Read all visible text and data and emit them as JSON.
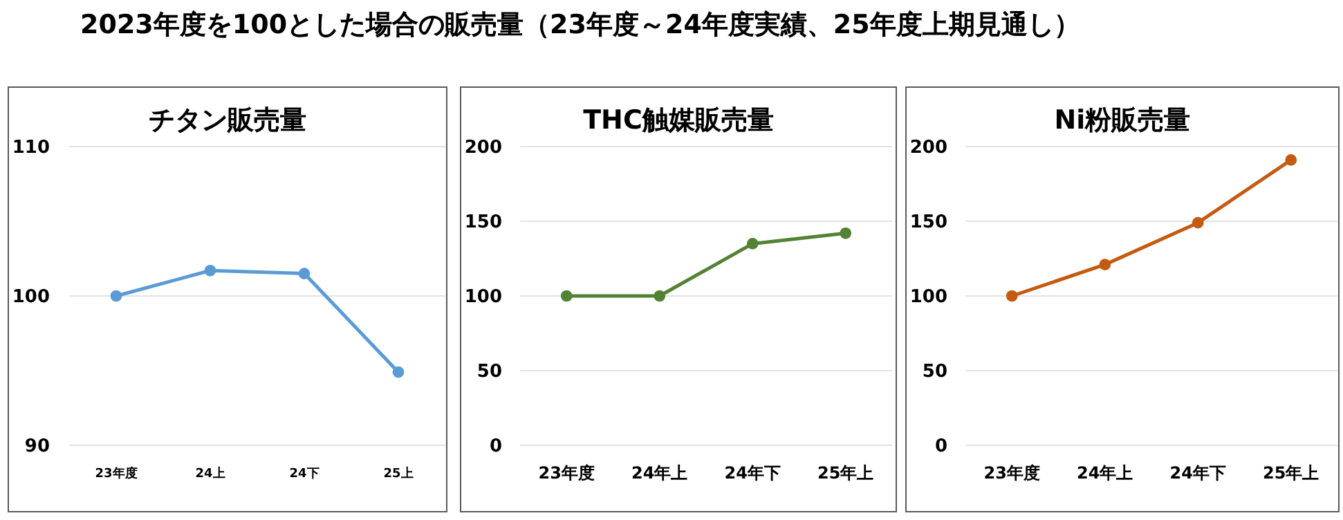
{
  "chart_data": [
    {
      "type": "line",
      "title": "チタン販売量",
      "annotations": [
        "2023年度を100とした場合の販売量（23年度～24年度実績、25年度上期見通し）"
      ],
      "categories": [
        "23年度",
        "24上",
        "24下",
        "25上"
      ],
      "series": [
        {
          "color": "#5b9bd5",
          "values": [
            100,
            101.7,
            101.5,
            94.9
          ]
        }
      ],
      "ylim": [
        90,
        110
      ],
      "yticks": [
        90,
        100,
        110
      ],
      "grid": "y",
      "marker": "circle"
    },
    {
      "type": "line",
      "title": "THC触媒販売量",
      "categories": [
        "23年度",
        "24年上",
        "24年下",
        "25年上"
      ],
      "series": [
        {
          "color": "#548235",
          "values": [
            100,
            100,
            135,
            142
          ]
        }
      ],
      "ylim": [
        0,
        200
      ],
      "yticks": [
        0,
        50,
        100,
        150,
        200
      ],
      "grid": "y",
      "marker": "circle"
    },
    {
      "type": "line",
      "title": "Ni粉販売量",
      "categories": [
        "23年度",
        "24年上",
        "24年下",
        "25年上"
      ],
      "series": [
        {
          "color": "#c55a11",
          "values": [
            100,
            121,
            149,
            191
          ]
        }
      ],
      "ylim": [
        0,
        200
      ],
      "yticks": [
        0,
        50,
        100,
        150,
        200
      ],
      "grid": "y",
      "marker": "circle"
    }
  ]
}
